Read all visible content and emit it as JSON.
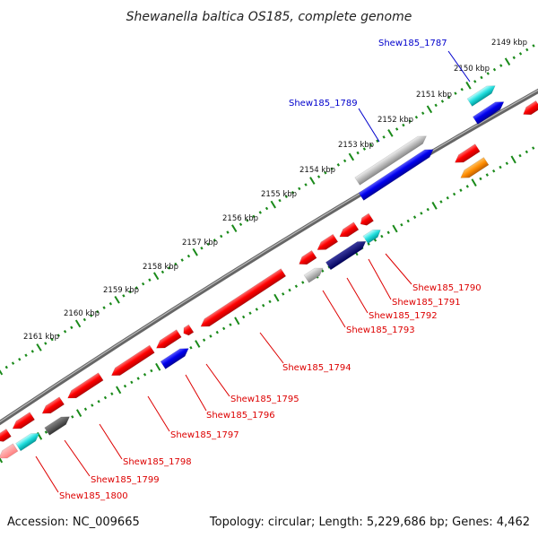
{
  "title": "Shewanella baltica OS185, complete genome",
  "footer": {
    "accession": "Accession: NC_009665",
    "summary": "Topology: circular; Length: 5,229,686 bp; Genes: 4,462"
  },
  "colors": {
    "forward": "#ff0000",
    "reverse": "#0000ee",
    "highlight": "#0000cc",
    "tick": "#1a8a1a"
  },
  "kbp_ticks": [
    "2149 kbp",
    "2150 kbp",
    "2151 kbp",
    "2152 kbp",
    "2153 kbp",
    "2154 kbp",
    "2155 kbp",
    "2156 kbp",
    "2157 kbp",
    "2158 kbp",
    "2159 kbp",
    "2160 kbp",
    "2161 kbp"
  ],
  "top_labels": [
    "Shew185_1787",
    "Shew185_1789"
  ],
  "bottom_labels": [
    "Shew185_1790",
    "Shew185_1791",
    "Shew185_1792",
    "Shew185_1793",
    "Shew185_1794",
    "Shew185_1795",
    "Shew185_1796",
    "Shew185_1797",
    "Shew185_1798",
    "Shew185_1799",
    "Shew185_1800"
  ]
}
